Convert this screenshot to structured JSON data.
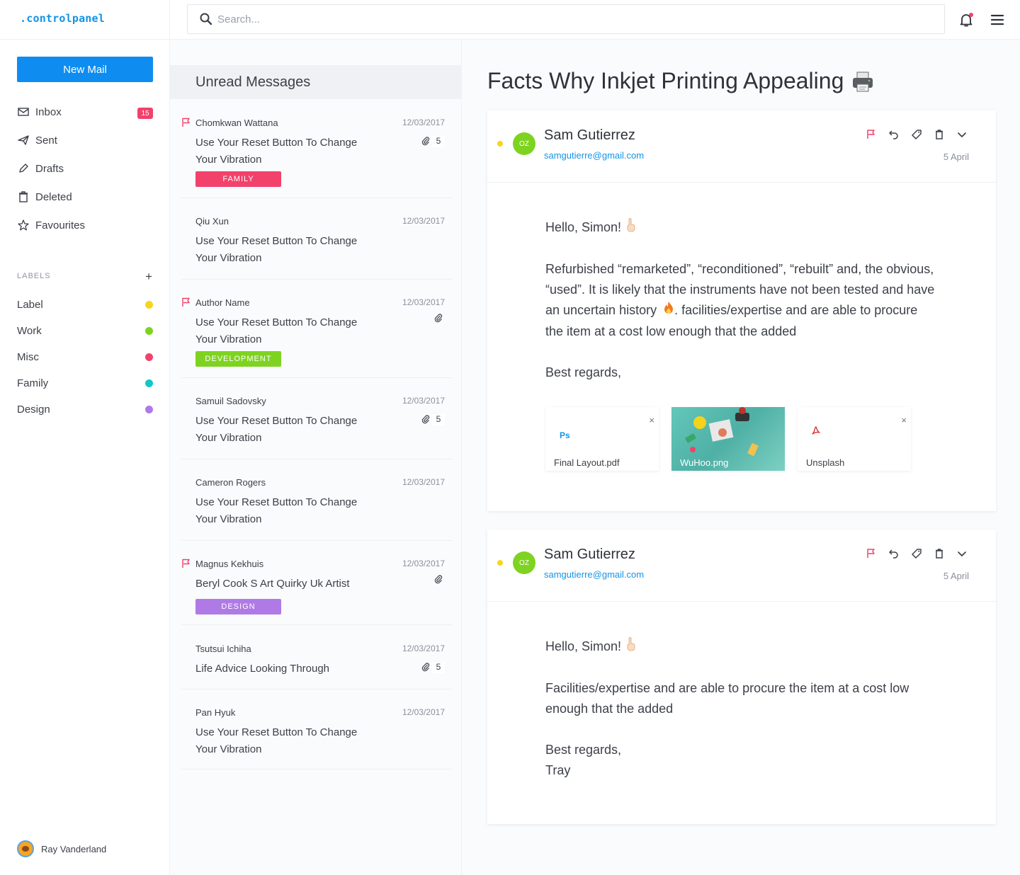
{
  "app": {
    "logo": ".controlpanel"
  },
  "sidebar": {
    "new_mail": "New Mail",
    "items": [
      {
        "label": "Inbox",
        "icon": "inbox-icon",
        "badge": "15"
      },
      {
        "label": "Sent",
        "icon": "send-icon"
      },
      {
        "label": "Drafts",
        "icon": "pencil-icon"
      },
      {
        "label": "Deleted",
        "icon": "trash-icon"
      },
      {
        "label": "Favourites",
        "icon": "star-icon"
      }
    ],
    "labels_title": "LABELS",
    "labels_add": "+",
    "labels": [
      {
        "label": "Label",
        "color": "#f7d51d"
      },
      {
        "label": "Work",
        "color": "#7ed321"
      },
      {
        "label": "Misc",
        "color": "#f2416b"
      },
      {
        "label": "Family",
        "color": "#14c6c6"
      },
      {
        "label": "Design",
        "color": "#b07ae6"
      }
    ],
    "user": "Ray Vanderland"
  },
  "search": {
    "placeholder": "Search..."
  },
  "list": {
    "title": "Unread Messages",
    "messages": [
      {
        "author": "Chomkwan Wattana",
        "date": "12/03/2017",
        "subject": "Use Your Reset Button To Change Your Vibration",
        "flag": true,
        "clip": true,
        "count": "5",
        "tag": "FAMILY",
        "tag_color": "#f2416b"
      },
      {
        "author": "Qiu Xun",
        "date": "12/03/2017",
        "subject": "Use Your Reset Button To Change Your Vibration",
        "flag": false,
        "clip": false
      },
      {
        "author": "Author Name",
        "date": "12/03/2017",
        "subject": "Use Your Reset Button To Change Your Vibration",
        "flag": true,
        "clip": true,
        "tag": "DEVELOPMENT",
        "tag_color": "#7ed321"
      },
      {
        "author": "Samuil Sadovsky",
        "date": "12/03/2017",
        "subject": "Use Your Reset Button To Change Your Vibration",
        "flag": false,
        "clip": true,
        "count": "5"
      },
      {
        "author": "Cameron Rogers",
        "date": "12/03/2017",
        "subject": "Use Your Reset Button To Change Your Vibration",
        "flag": false,
        "clip": false
      },
      {
        "author": "Magnus Kekhuis",
        "date": "12/03/2017",
        "subject": "Beryl Cook S Art Quirky Uk Artist",
        "flag": true,
        "clip": true,
        "tag": "DESIGN",
        "tag_color": "#b07ae6"
      },
      {
        "author": "Tsutsui Ichiha",
        "date": "12/03/2017",
        "subject": "Life Advice Looking Through",
        "flag": false,
        "clip": true,
        "count": "5"
      },
      {
        "author": "Pan Hyuk",
        "date": "12/03/2017",
        "subject": "Use Your Reset Button To Change Your Vibration",
        "flag": false,
        "clip": false
      }
    ]
  },
  "reader": {
    "title": "Facts Why Inkjet  Printing Appealing",
    "mails": [
      {
        "avatar": "OZ",
        "sender": "Sam Gutierrez",
        "email": "samgutierre@gmail.com",
        "date": "5 April",
        "greeting": "Hello, Simon!",
        "para1_a": "Refurbished  “remarketed”, “reconditioned”, “rebuilt” and, the obvious, “used”. It is likely that the instruments have not been tested and have an uncertain history",
        "para1_b": ".  facilities/expertise and are able to procure the item at a cost low enough that the added",
        "signoff": "Best regards,",
        "attachments": [
          {
            "name": "Final Layout.pdf",
            "icon": "photoshop-icon",
            "icon_text": "Ps",
            "close": "×"
          },
          {
            "name": "WuHoo.png",
            "type": "image"
          },
          {
            "name": "Unsplash",
            "icon": "pdf-icon",
            "close": "×"
          }
        ]
      },
      {
        "avatar": "OZ",
        "sender": "Sam Gutierrez",
        "email": "samgutierre@gmail.com",
        "date": "5 April",
        "greeting": "Hello, Simon!",
        "para1": "Facilities/expertise and are able to procure the item at a cost low enough that the added",
        "signoff": "Best regards,",
        "signature": "Tray"
      }
    ]
  }
}
